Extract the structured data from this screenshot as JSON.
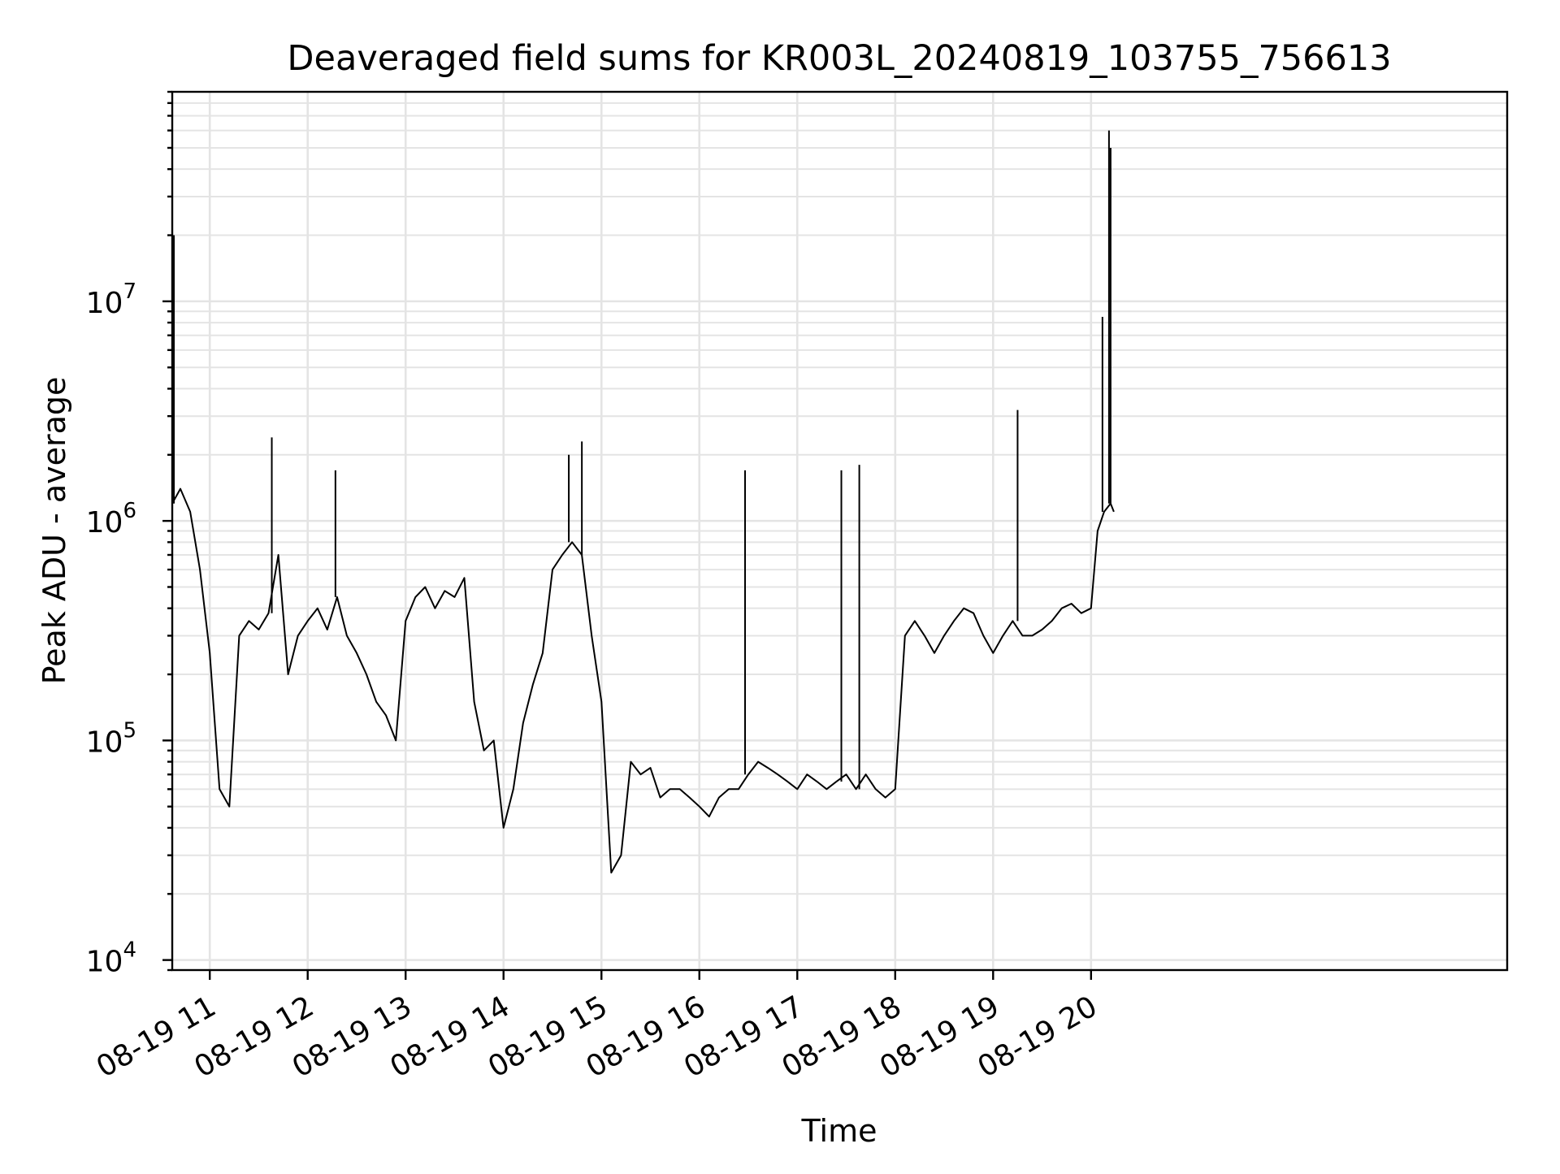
{
  "chart_data": {
    "type": "line",
    "title": "Deaveraged field sums for KR003L_20240819_103755_756613",
    "xlabel": "Time",
    "ylabel": "Peak ADU - average",
    "yscale": "log",
    "grid": true,
    "legend": "none",
    "line_color": "#000000",
    "xlim": [
      "2024-08-19 10:37",
      "2024-08-20 00:15"
    ],
    "ylim": [
      9000,
      90000000
    ],
    "x_ticks": [
      {
        "time": "2024-08-19 11:00",
        "label": "08-19 11"
      },
      {
        "time": "2024-08-19 12:00",
        "label": "08-19 12"
      },
      {
        "time": "2024-08-19 13:00",
        "label": "08-19 13"
      },
      {
        "time": "2024-08-19 14:00",
        "label": "08-19 14"
      },
      {
        "time": "2024-08-19 15:00",
        "label": "08-19 15"
      },
      {
        "time": "2024-08-19 16:00",
        "label": "08-19 16"
      },
      {
        "time": "2024-08-19 17:00",
        "label": "08-19 17"
      },
      {
        "time": "2024-08-19 18:00",
        "label": "08-19 18"
      },
      {
        "time": "2024-08-19 19:00",
        "label": "08-19 19"
      },
      {
        "time": "2024-08-19 20:00",
        "label": "08-19 20"
      }
    ],
    "y_ticks": [
      {
        "value": 10000,
        "base": "10",
        "exp": "4"
      },
      {
        "value": 100000,
        "base": "10",
        "exp": "5"
      },
      {
        "value": 1000000,
        "base": "10",
        "exp": "6"
      },
      {
        "value": 10000000,
        "base": "10",
        "exp": "7"
      }
    ],
    "series": [
      {
        "x": [
          "2024-08-19 10:37",
          "2024-08-19 10:42",
          "2024-08-19 10:48",
          "2024-08-19 10:54",
          "2024-08-19 11:00",
          "2024-08-19 11:06",
          "2024-08-19 11:12",
          "2024-08-19 11:18",
          "2024-08-19 11:24",
          "2024-08-19 11:30",
          "2024-08-19 11:36",
          "2024-08-19 11:42",
          "2024-08-19 11:48",
          "2024-08-19 11:54",
          "2024-08-19 12:00",
          "2024-08-19 12:06",
          "2024-08-19 12:12",
          "2024-08-19 12:18",
          "2024-08-19 12:24",
          "2024-08-19 12:30",
          "2024-08-19 12:36",
          "2024-08-19 12:42",
          "2024-08-19 12:48",
          "2024-08-19 12:54",
          "2024-08-19 13:00",
          "2024-08-19 13:06",
          "2024-08-19 13:12",
          "2024-08-19 13:18",
          "2024-08-19 13:24",
          "2024-08-19 13:30",
          "2024-08-19 13:36",
          "2024-08-19 13:42",
          "2024-08-19 13:48",
          "2024-08-19 13:54",
          "2024-08-19 14:00",
          "2024-08-19 14:06",
          "2024-08-19 14:12",
          "2024-08-19 14:18",
          "2024-08-19 14:24",
          "2024-08-19 14:30",
          "2024-08-19 14:36",
          "2024-08-19 14:42",
          "2024-08-19 14:48",
          "2024-08-19 14:54",
          "2024-08-19 15:00",
          "2024-08-19 15:06",
          "2024-08-19 15:12",
          "2024-08-19 15:18",
          "2024-08-19 15:24",
          "2024-08-19 15:30",
          "2024-08-19 15:36",
          "2024-08-19 15:42",
          "2024-08-19 15:48",
          "2024-08-19 15:54",
          "2024-08-19 16:00",
          "2024-08-19 16:06",
          "2024-08-19 16:12",
          "2024-08-19 16:18",
          "2024-08-19 16:24",
          "2024-08-19 16:30",
          "2024-08-19 16:36",
          "2024-08-19 16:42",
          "2024-08-19 16:48",
          "2024-08-19 16:54",
          "2024-08-19 17:00",
          "2024-08-19 17:06",
          "2024-08-19 17:12",
          "2024-08-19 17:18",
          "2024-08-19 17:24",
          "2024-08-19 17:30",
          "2024-08-19 17:36",
          "2024-08-19 17:42",
          "2024-08-19 17:48",
          "2024-08-19 17:54",
          "2024-08-19 18:00",
          "2024-08-19 18:06",
          "2024-08-19 18:12",
          "2024-08-19 18:18",
          "2024-08-19 18:24",
          "2024-08-19 18:30",
          "2024-08-19 18:36",
          "2024-08-19 18:42",
          "2024-08-19 18:48",
          "2024-08-19 18:54",
          "2024-08-19 19:00",
          "2024-08-19 19:06",
          "2024-08-19 19:12",
          "2024-08-19 19:18",
          "2024-08-19 19:24",
          "2024-08-19 19:30",
          "2024-08-19 19:36",
          "2024-08-19 19:42",
          "2024-08-19 19:48",
          "2024-08-19 19:54",
          "2024-08-19 20:00",
          "2024-08-19 20:04",
          "2024-08-19 20:08",
          "2024-08-19 20:12",
          "2024-08-19 20:14"
        ],
        "y": [
          1200000,
          1400000,
          1100000,
          600000,
          250000,
          60000,
          50000,
          300000,
          350000,
          320000,
          380000,
          700000,
          200000,
          300000,
          350000,
          400000,
          320000,
          450000,
          300000,
          250000,
          200000,
          150000,
          130000,
          100000,
          350000,
          450000,
          500000,
          400000,
          480000,
          450000,
          550000,
          150000,
          90000,
          100000,
          40000,
          60000,
          120000,
          180000,
          250000,
          600000,
          700000,
          800000,
          700000,
          300000,
          150000,
          25000,
          30000,
          80000,
          70000,
          75000,
          55000,
          60000,
          60000,
          55000,
          50000,
          45000,
          55000,
          60000,
          60000,
          70000,
          80000,
          75000,
          70000,
          65000,
          60000,
          70000,
          65000,
          60000,
          65000,
          70000,
          60000,
          70000,
          60000,
          55000,
          60000,
          300000,
          350000,
          300000,
          250000,
          300000,
          350000,
          400000,
          380000,
          300000,
          250000,
          300000,
          350000,
          300000,
          300000,
          320000,
          350000,
          400000,
          420000,
          380000,
          400000,
          900000,
          1100000,
          1200000,
          1100000
        ]
      }
    ],
    "spikes": [
      {
        "x": "2024-08-19 10:38",
        "y": 20000000
      },
      {
        "x": "2024-08-19 11:38",
        "y": 2400000
      },
      {
        "x": "2024-08-19 12:17",
        "y": 1700000
      },
      {
        "x": "2024-08-19 14:40",
        "y": 2000000
      },
      {
        "x": "2024-08-19 14:48",
        "y": 2300000
      },
      {
        "x": "2024-08-19 16:28",
        "y": 1700000
      },
      {
        "x": "2024-08-19 17:27",
        "y": 1700000
      },
      {
        "x": "2024-08-19 17:38",
        "y": 1800000
      },
      {
        "x": "2024-08-19 19:15",
        "y": 3200000
      },
      {
        "x": "2024-08-19 20:07",
        "y": 8500000
      },
      {
        "x": "2024-08-19 20:11",
        "y": 60000000
      },
      {
        "x": "2024-08-19 20:12",
        "y": 50000000
      }
    ]
  }
}
